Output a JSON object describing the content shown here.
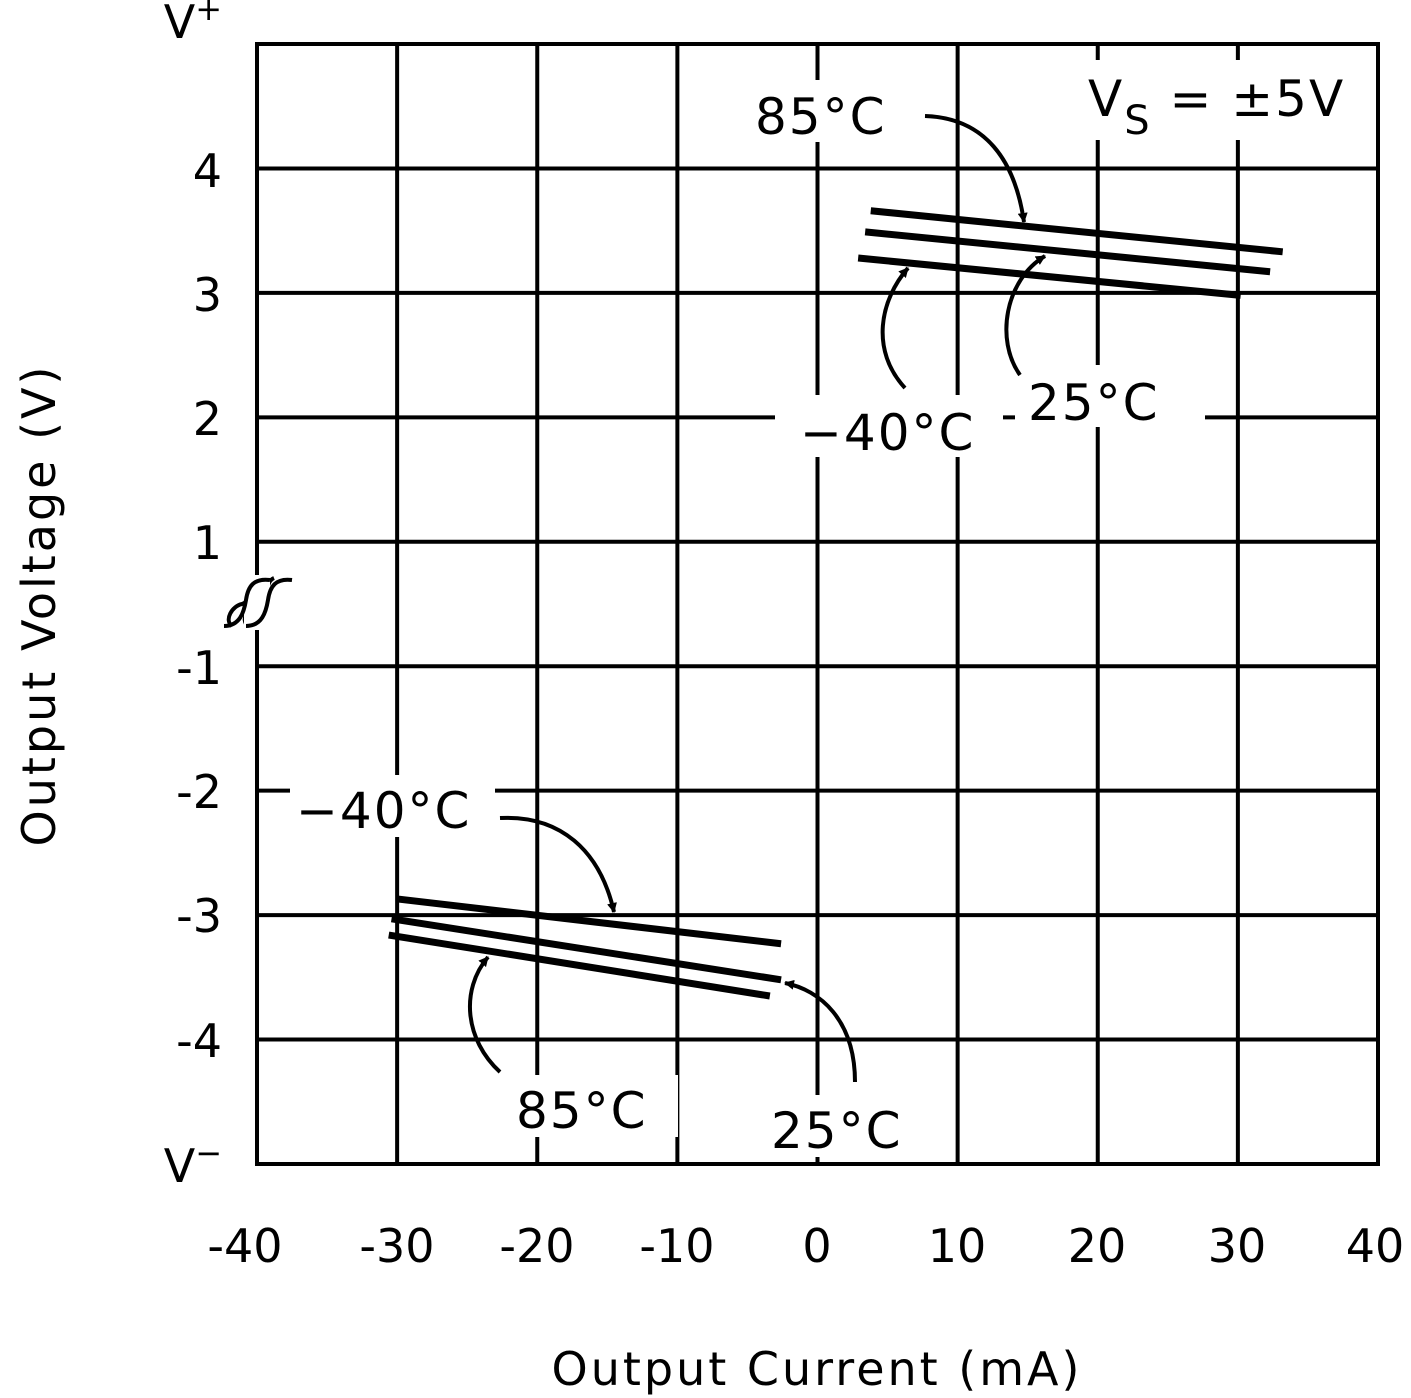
{
  "chart_data": {
    "type": "line",
    "xlabel": "Output Current (mA)",
    "ylabel": "Output Voltage (V)",
    "xlim": [
      -40,
      40
    ],
    "x_ticks": [
      "-40",
      "-30",
      "-20",
      "-10",
      "0",
      "10",
      "20",
      "30",
      "40"
    ],
    "y_ticks": [
      "V+",
      "4",
      "3",
      "2",
      "1",
      "-1",
      "-2",
      "-3",
      "-4",
      "V-"
    ],
    "y_tick_labels": {
      "vplus": "V",
      "vplus_sup": "+",
      "vminus": "V",
      "vminus_sup": "−"
    },
    "grid": true,
    "axis_break": "between 1 and -1",
    "condition": {
      "main": "V",
      "sub": "S",
      "rest": " = ±5V"
    },
    "series": [
      {
        "name": "85°C",
        "group": "source",
        "x": [
          3.8,
          33.2
        ],
        "y": [
          3.66,
          3.33
        ]
      },
      {
        "name": "25°C",
        "group": "source",
        "x": [
          3.4,
          32.3
        ],
        "y": [
          3.49,
          3.17
        ]
      },
      {
        "name": "-40°C",
        "group": "source",
        "x": [
          2.9,
          30.2
        ],
        "y": [
          3.28,
          2.98
        ]
      },
      {
        "name": "-40°C",
        "group": "sink",
        "x": [
          -30.0,
          -2.6
        ],
        "y": [
          -2.87,
          -3.23
        ]
      },
      {
        "name": "25°C",
        "group": "sink",
        "x": [
          -30.4,
          -2.6
        ],
        "y": [
          -3.03,
          -3.52
        ]
      },
      {
        "name": "85°C",
        "group": "sink",
        "x": [
          -30.6,
          -3.4
        ],
        "y": [
          -3.16,
          -3.65
        ]
      }
    ],
    "annotations": {
      "top_85": "85°C",
      "top_m40": "−40°C",
      "top_25": "25°C",
      "bot_m40": "−40°C",
      "bot_85": "85°C",
      "bot_25": "25°C"
    }
  }
}
